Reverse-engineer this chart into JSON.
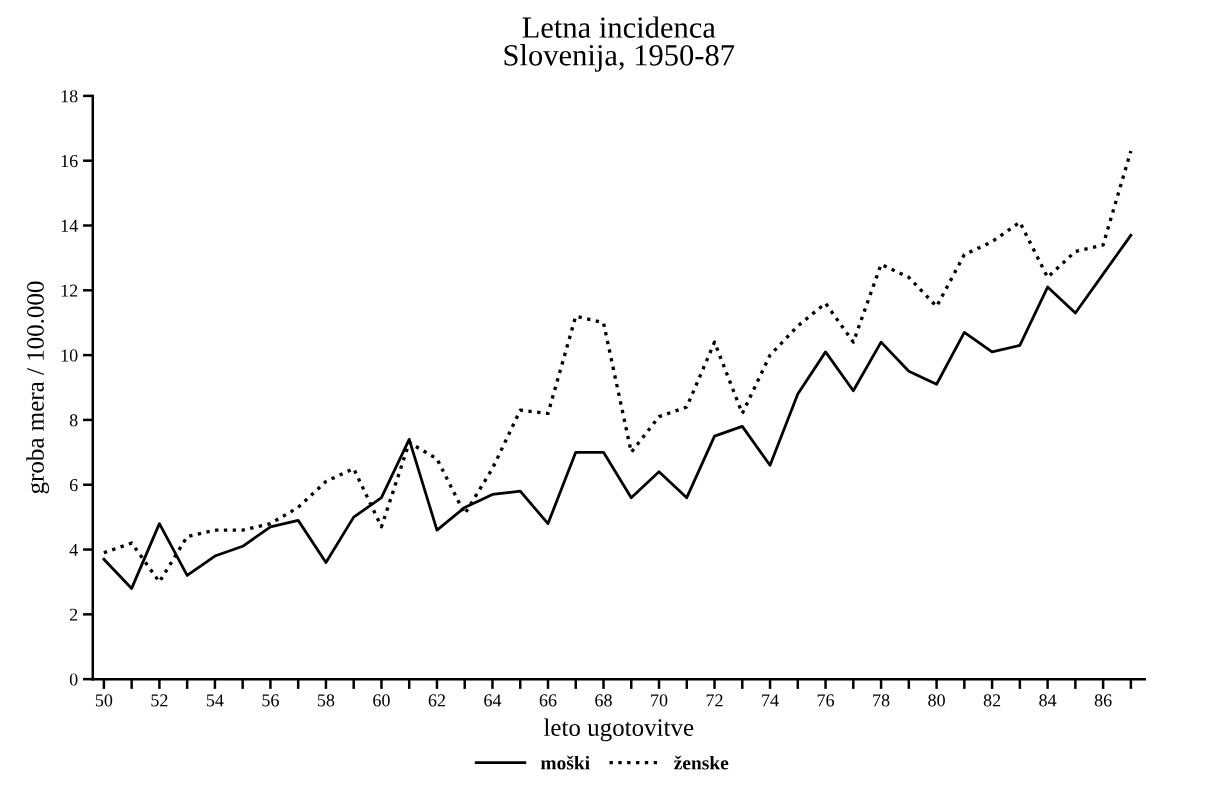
{
  "chart_data": {
    "type": "line",
    "title": "Letna incidenca\nSlovenija, 1950-87",
    "xlabel": "leto ugotovitve",
    "ylabel": "groba mera / 100.000",
    "x": [
      50,
      51,
      52,
      53,
      54,
      55,
      56,
      57,
      58,
      59,
      60,
      61,
      62,
      63,
      64,
      65,
      66,
      67,
      68,
      69,
      70,
      71,
      72,
      73,
      74,
      75,
      76,
      77,
      78,
      79,
      80,
      81,
      82,
      83,
      84,
      85,
      86,
      87
    ],
    "series": [
      {
        "name": "moški",
        "color": "#000000",
        "line_style": "solid",
        "values": [
          3.7,
          2.8,
          4.8,
          3.2,
          3.8,
          4.1,
          4.7,
          4.9,
          3.6,
          5.0,
          5.6,
          7.4,
          4.6,
          5.3,
          5.7,
          5.8,
          4.8,
          7.0,
          7.0,
          5.6,
          6.4,
          5.6,
          7.5,
          7.8,
          6.6,
          8.8,
          10.1,
          8.9,
          10.4,
          9.5,
          9.1,
          10.7,
          10.1,
          10.3,
          12.1,
          11.3,
          12.5,
          13.7
        ]
      },
      {
        "name": "ženske",
        "color": "#000000",
        "line_style": "dotted",
        "values": [
          3.9,
          4.2,
          3.0,
          4.4,
          4.6,
          4.6,
          4.8,
          5.3,
          6.1,
          6.5,
          4.7,
          7.3,
          6.8,
          5.1,
          6.5,
          8.3,
          8.2,
          11.2,
          11.0,
          7.0,
          8.1,
          8.4,
          10.4,
          8.2,
          10.0,
          10.9,
          11.6,
          10.4,
          12.8,
          12.4,
          11.5,
          13.1,
          13.5,
          14.1,
          12.4,
          13.2,
          13.4,
          16.3
        ]
      }
    ],
    "xlim": [
      49.6,
      87.5
    ],
    "xticks": [
      50,
      {
        "value": 51,
        "label": null
      },
      52,
      {
        "value": 53,
        "label": null
      },
      54,
      {
        "value": 55,
        "label": null
      },
      56,
      {
        "value": 57,
        "label": null
      },
      58,
      {
        "value": 59,
        "label": null
      },
      60,
      {
        "value": 61,
        "label": null
      },
      62,
      {
        "value": 63,
        "label": null
      },
      64,
      {
        "value": 65,
        "label": null
      },
      66,
      {
        "value": 67,
        "label": null
      },
      68,
      {
        "value": 69,
        "label": null
      },
      70,
      {
        "value": 71,
        "label": null
      },
      72,
      {
        "value": 73,
        "label": null
      },
      74,
      {
        "value": 75,
        "label": null
      },
      76,
      {
        "value": 77,
        "label": null
      },
      78,
      {
        "value": 79,
        "label": null
      },
      80,
      {
        "value": 81,
        "label": null
      },
      82,
      {
        "value": 83,
        "label": null
      },
      84,
      {
        "value": 85,
        "label": null
      },
      86,
      {
        "value": 87,
        "label": null
      }
    ],
    "ylim": [
      0,
      18
    ],
    "yticks": [
      0,
      2,
      4,
      6,
      8,
      10,
      12,
      14,
      16,
      18
    ],
    "grid": false,
    "legend": "bottom",
    "marker": "none"
  }
}
